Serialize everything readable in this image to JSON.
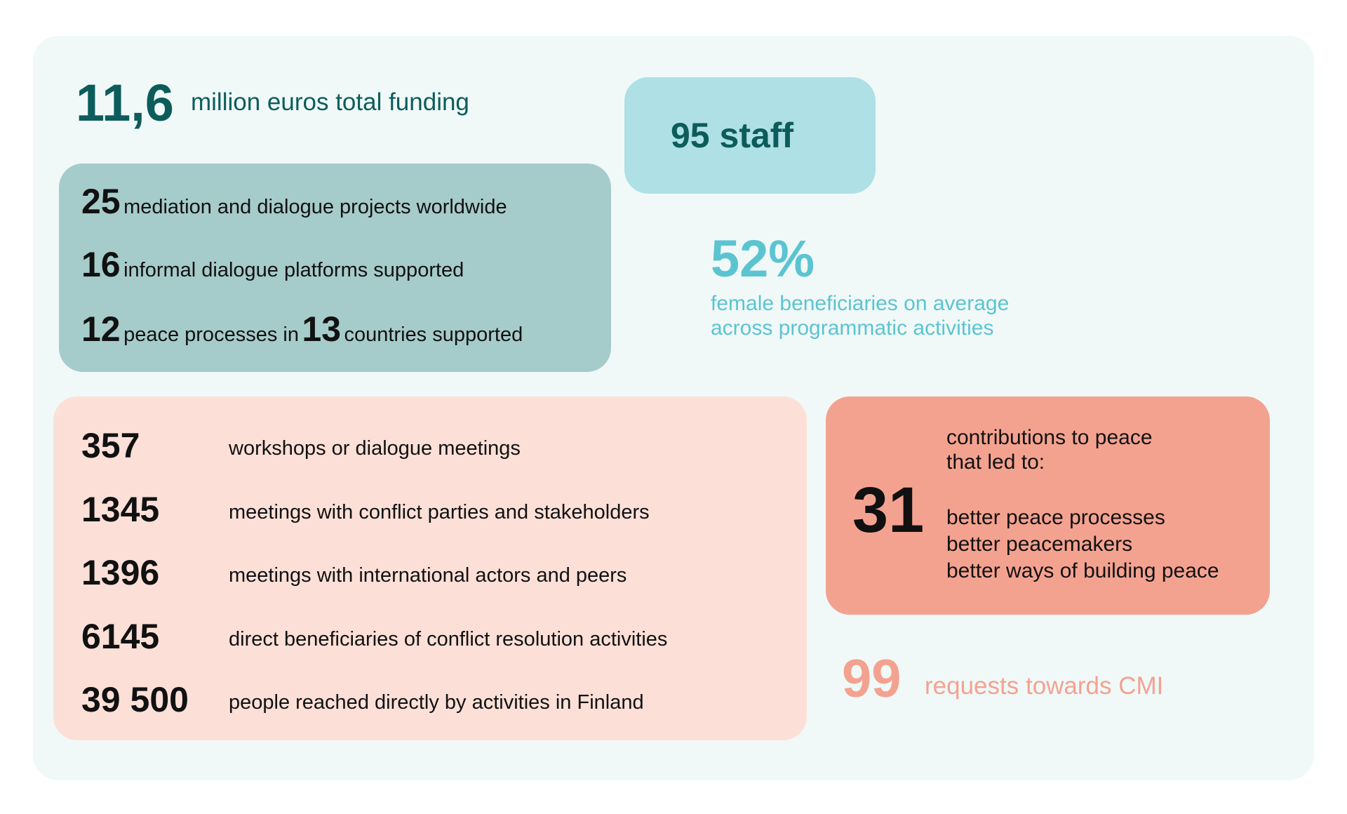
{
  "colors": {
    "teal_dark": "#0d5c5c",
    "teal_box": "#a6cbcb",
    "staff_box": "#aee0e6",
    "cyan": "#5bc4d1",
    "pink_box": "#fce0d8",
    "salmon": "#f4a290",
    "panel": "#f0f9f8"
  },
  "funding": {
    "number": "11,6",
    "label": "million euros total funding"
  },
  "staff": {
    "label": "95 staff"
  },
  "projects": [
    {
      "number": "25",
      "label": "mediation and dialogue projects worldwide"
    },
    {
      "number": "16",
      "label": "informal dialogue platforms supported"
    },
    {
      "number": "12",
      "label": "peace processes in",
      "number2": "13",
      "label2": "countries supported"
    }
  ],
  "female": {
    "number": "52%",
    "line1": "female beneficiaries on average",
    "line2": "across programmatic activities"
  },
  "activities": [
    {
      "number": "357",
      "label": "workshops or dialogue meetings"
    },
    {
      "number": "1345",
      "label": "meetings with conflict parties and stakeholders"
    },
    {
      "number": "1396",
      "label": "meetings with international actors and peers"
    },
    {
      "number": "6145",
      "label": "direct beneficiaries of conflict resolution activities"
    },
    {
      "number": "39 500",
      "label": "people reached directly by activities in Finland"
    }
  ],
  "contributions": {
    "number": "31",
    "line1": "contributions to peace",
    "line2": "that led to:",
    "items": [
      "better peace processes",
      "better peacemakers",
      "better ways of building peace"
    ]
  },
  "requests": {
    "number": "99",
    "label": "requests towards CMI"
  }
}
